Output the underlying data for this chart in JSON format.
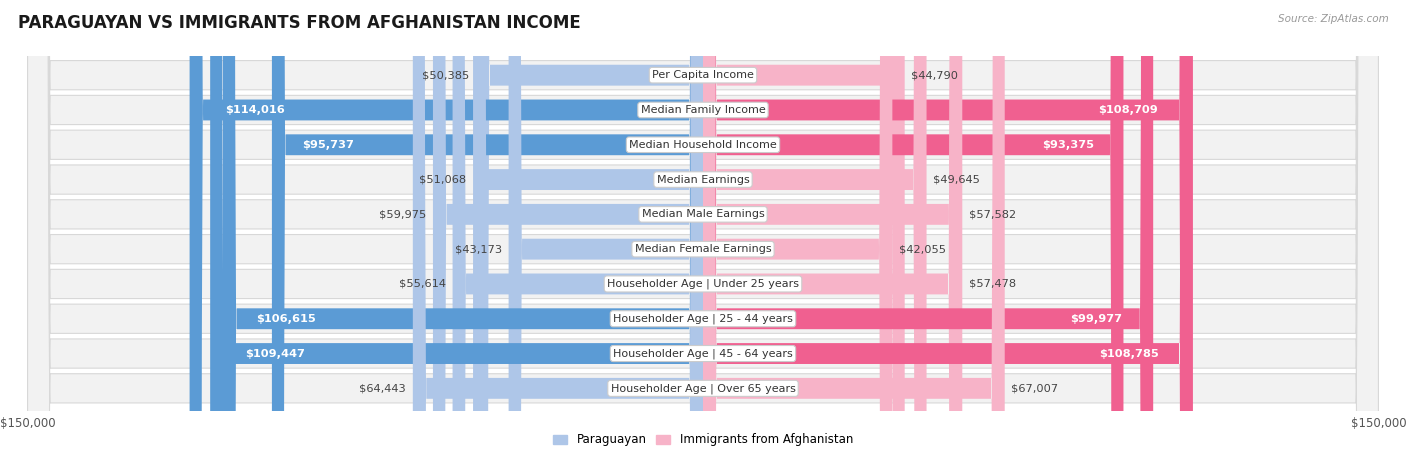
{
  "title": "PARAGUAYAN VS IMMIGRANTS FROM AFGHANISTAN INCOME",
  "source": "Source: ZipAtlas.com",
  "categories": [
    "Per Capita Income",
    "Median Family Income",
    "Median Household Income",
    "Median Earnings",
    "Median Male Earnings",
    "Median Female Earnings",
    "Householder Age | Under 25 years",
    "Householder Age | 25 - 44 years",
    "Householder Age | 45 - 64 years",
    "Householder Age | Over 65 years"
  ],
  "paraguayan_values": [
    50385,
    114016,
    95737,
    51068,
    59975,
    43173,
    55614,
    106615,
    109447,
    64443
  ],
  "afghanistan_values": [
    44790,
    108709,
    93375,
    49645,
    57582,
    42055,
    57478,
    99977,
    108785,
    67007
  ],
  "paraguayan_labels": [
    "$50,385",
    "$114,016",
    "$95,737",
    "$51,068",
    "$59,975",
    "$43,173",
    "$55,614",
    "$106,615",
    "$109,447",
    "$64,443"
  ],
  "afghanistan_labels": [
    "$44,790",
    "$108,709",
    "$93,375",
    "$49,645",
    "$57,582",
    "$42,055",
    "$57,478",
    "$99,977",
    "$108,785",
    "$67,007"
  ],
  "color_paraguayan_light": "#aec6e8",
  "color_paraguayan_dark": "#5b9bd5",
  "color_afghanistan_light": "#f7b3c8",
  "color_afghanistan_dark": "#f06090",
  "row_bg_color": "#f2f2f2",
  "row_border_color": "#d8d8d8",
  "max_value": 150000,
  "label_fontsize": 8.2,
  "title_fontsize": 12,
  "category_fontsize": 8.0,
  "axis_label": "$150,000",
  "legend_label_paraguayan": "Paraguayan",
  "legend_label_afghanistan": "Immigrants from Afghanistan",
  "value_threshold": 75000
}
